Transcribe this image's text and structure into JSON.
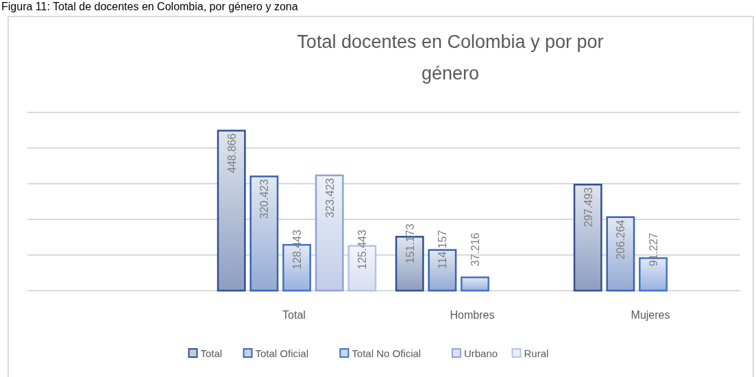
{
  "chart_data": {
    "type": "bar",
    "title": "Total docentes en Colombia y por por género",
    "annotations": [
      "Figura 11: Total de docentes en Colombia, por género y zona"
    ],
    "categories": [
      "Total",
      "Hombres",
      "Mujeres"
    ],
    "series": [
      {
        "name": "Total",
        "color": "#2f4f8f",
        "values": [
          448866,
          151173,
          297493
        ],
        "value_labels": [
          "448.866",
          "151.173",
          "297.493"
        ]
      },
      {
        "name": "Total Oficial",
        "color": "#3a64b0",
        "values": [
          320423,
          114157,
          206264
        ],
        "value_labels": [
          "320.423",
          "114.157",
          "206.264"
        ]
      },
      {
        "name": "Total No Oficial",
        "color": "#4472c4",
        "values": [
          128443,
          37216,
          91227
        ],
        "value_labels": [
          "128.443",
          "37.216",
          "91.227"
        ]
      },
      {
        "name": "Urbano",
        "color": "#8fa2d4",
        "values": [
          323423,
          null,
          null
        ],
        "value_labels": [
          "323.423",
          null,
          null
        ]
      },
      {
        "name": "Rural",
        "color": "#b4c3e6",
        "values": [
          125443,
          null,
          null
        ],
        "value_labels": [
          "125.443",
          null,
          null
        ]
      }
    ],
    "ylim": [
      0,
      500000
    ],
    "yticks": [
      {
        "value": 0,
        "label": null
      },
      {
        "value": 100000,
        "label": null
      },
      {
        "value": 200000,
        "label": null
      },
      {
        "value": 300000,
        "label": null
      },
      {
        "value": 400000,
        "label": null
      },
      {
        "value": 500000,
        "label": null
      }
    ],
    "tick_labels": "x",
    "grid": "y",
    "legend": "bottom"
  }
}
